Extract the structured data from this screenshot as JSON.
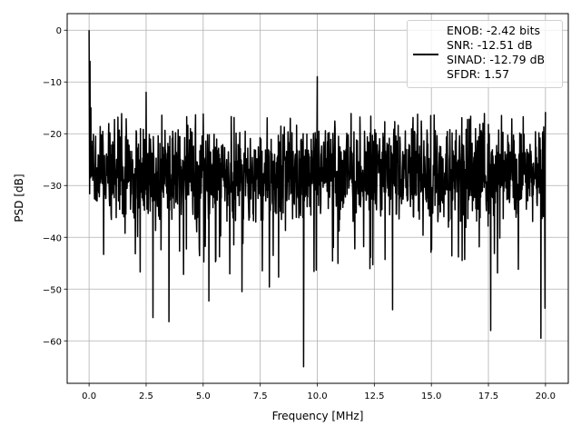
{
  "chart_data": {
    "type": "line",
    "title": "",
    "xlabel": "Frequency [MHz]",
    "ylabel": "PSD [dB]",
    "xlim": [
      -0.96,
      21.0
    ],
    "ylim": [
      -68.2,
      3.2
    ],
    "xticks": [
      0.0,
      2.5,
      5.0,
      7.5,
      10.0,
      12.5,
      15.0,
      17.5,
      20.0
    ],
    "xtick_labels": [
      "0.0",
      "2.5",
      "5.0",
      "7.5",
      "10.0",
      "12.5",
      "15.0",
      "17.5",
      "20.0"
    ],
    "yticks": [
      0,
      -10,
      -20,
      -30,
      -40,
      -50,
      -60
    ],
    "ytick_labels": [
      "0",
      "−10",
      "−20",
      "−30",
      "−40",
      "−50",
      "−60"
    ],
    "grid": true,
    "legend_placement": "upper-right",
    "series": [
      {
        "name": "PSD",
        "color": "#000000",
        "x_range": [
          0.0,
          20.0
        ],
        "num_points": 1600,
        "noise_floor_mean": -28,
        "noise_floor_spread": [
          -20,
          -38
        ],
        "notable_points": [
          {
            "x": 0.0,
            "y": 0.0
          },
          {
            "x": 0.04,
            "y": -6
          },
          {
            "x": 0.08,
            "y": -15
          },
          {
            "x": 2.5,
            "y": -12
          },
          {
            "x": 2.8,
            "y": -55.5
          },
          {
            "x": 3.5,
            "y": -56.3
          },
          {
            "x": 5.25,
            "y": -52.3
          },
          {
            "x": 6.7,
            "y": -50.5
          },
          {
            "x": 7.9,
            "y": -49.6
          },
          {
            "x": 9.4,
            "y": -65.0
          },
          {
            "x": 10.0,
            "y": -9.0
          },
          {
            "x": 13.3,
            "y": -54.0
          },
          {
            "x": 17.6,
            "y": -58.0
          },
          {
            "x": 19.8,
            "y": -59.5
          },
          {
            "x": 19.98,
            "y": -53.7
          },
          {
            "x": 20.0,
            "y": -15.8
          }
        ]
      }
    ],
    "legend": [
      "ENOB: -2.42 bits",
      "SNR: -12.51 dB",
      "SINAD: -12.79 dB",
      "SFDR: 1.57"
    ]
  }
}
